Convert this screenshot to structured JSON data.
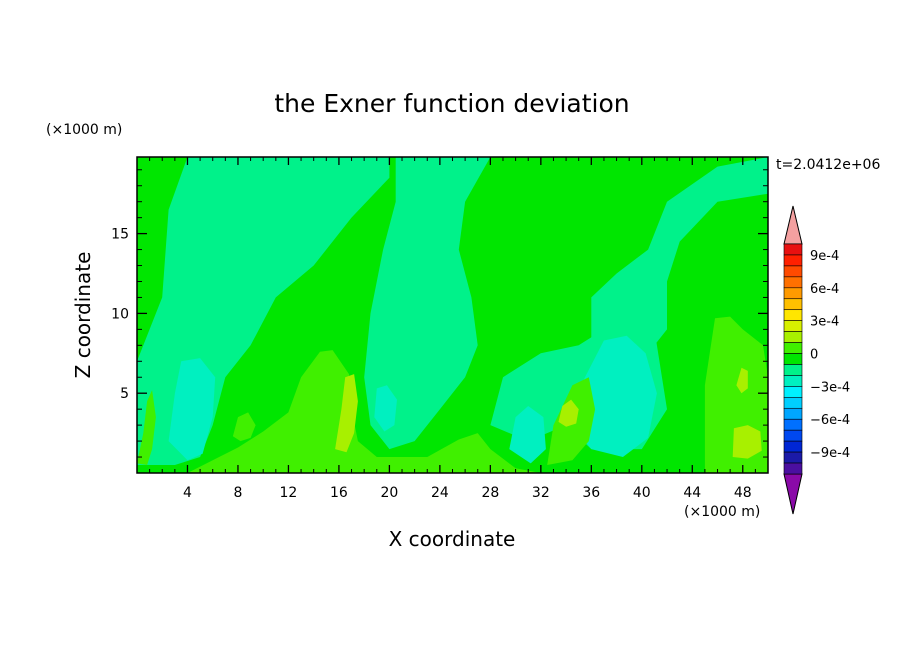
{
  "chart_data": {
    "type": "heatmap",
    "title": "the Exner function deviation",
    "xlabel": "X coordinate",
    "ylabel": "Z coordinate",
    "x_unit": "(×1000 m)",
    "y_unit": "(×1000 m)",
    "time_label": "t=2.0412e+06",
    "xlim": [
      0,
      50
    ],
    "ylim": [
      0,
      19.8
    ],
    "x_ticks": [
      4,
      8,
      12,
      16,
      20,
      24,
      28,
      32,
      36,
      40,
      44,
      48
    ],
    "y_ticks": [
      5,
      10,
      15
    ],
    "grid": false,
    "colorbar": {
      "position": "right",
      "levels": [
        -0.0011,
        -0.001,
        -0.0009,
        -0.0008,
        -0.0007,
        -0.0006,
        -0.0005,
        -0.0004,
        -0.0003,
        -0.0002,
        -0.0001,
        0,
        0.0001,
        0.0002,
        0.0003,
        0.0004,
        0.0005,
        0.0006,
        0.0007,
        0.0008,
        0.0009,
        0.001,
        0.0011
      ],
      "labels": [
        {
          "value": 0.0009,
          "text": "9e-4"
        },
        {
          "value": 0.0006,
          "text": "6e-4"
        },
        {
          "value": 0.0003,
          "text": "3e-4"
        },
        {
          "value": 0,
          "text": "0"
        },
        {
          "value": -0.0003,
          "text": "−3e-4"
        },
        {
          "value": -0.0006,
          "text": "−6e-4"
        },
        {
          "value": -0.0009,
          "text": "−9e-4"
        }
      ],
      "colors": [
        "#7a1fa8",
        "#4b0fa0",
        "#1b1aa8",
        "#0026d4",
        "#0048f0",
        "#0070ff",
        "#00a6ff",
        "#00cfff",
        "#00f0ff",
        "#00f0c0",
        "#00f28a",
        "#00e600",
        "#40f000",
        "#a8f000",
        "#d8f000",
        "#ffe600",
        "#ffc000",
        "#ff9a00",
        "#ff7000",
        "#ff4a00",
        "#ff2000",
        "#e81010",
        "#f4a0a0"
      ],
      "over_color": "#f4a0a0",
      "under_color": "#8a0aa8"
    },
    "regions": [
      {
        "value": 5e-05,
        "points": [
          [
            0,
            0
          ],
          [
            50,
            0
          ],
          [
            50,
            19.8
          ],
          [
            0,
            19.8
          ]
        ]
      },
      {
        "value": -8e-05,
        "points": [
          [
            0,
            7
          ],
          [
            2,
            11
          ],
          [
            2.5,
            16.5
          ],
          [
            4,
            19.8
          ],
          [
            20,
            19.8
          ],
          [
            20,
            18.5
          ],
          [
            17,
            16
          ],
          [
            14,
            13
          ],
          [
            11,
            11
          ],
          [
            9,
            8
          ],
          [
            7,
            6
          ],
          [
            6,
            3
          ],
          [
            5,
            1
          ],
          [
            3,
            0.5
          ],
          [
            0,
            0.5
          ]
        ]
      },
      {
        "value": -8e-05,
        "points": [
          [
            20.5,
            19.8
          ],
          [
            28,
            19.8
          ],
          [
            26,
            17
          ],
          [
            25.5,
            14
          ],
          [
            26.5,
            11
          ],
          [
            27,
            8
          ],
          [
            26,
            6
          ],
          [
            24,
            4
          ],
          [
            22,
            2
          ],
          [
            20,
            1.5
          ],
          [
            18.5,
            3
          ],
          [
            18,
            6
          ],
          [
            18.5,
            10
          ],
          [
            19.5,
            14
          ],
          [
            20.5,
            17
          ]
        ]
      },
      {
        "value": -8e-05,
        "points": [
          [
            36,
            11
          ],
          [
            38,
            12.5
          ],
          [
            40.5,
            14
          ],
          [
            42,
            17
          ],
          [
            46,
            19.2
          ],
          [
            50,
            19.8
          ],
          [
            50,
            17.5
          ],
          [
            46,
            17
          ],
          [
            43,
            14.5
          ],
          [
            42,
            12
          ],
          [
            42,
            9
          ],
          [
            40,
            7
          ],
          [
            38,
            6
          ],
          [
            36,
            7
          ]
        ]
      },
      {
        "value": -8e-05,
        "points": [
          [
            28,
            3
          ],
          [
            31,
            2
          ],
          [
            34,
            3
          ],
          [
            36,
            1.5
          ],
          [
            40,
            1.5
          ],
          [
            42,
            4
          ],
          [
            41,
            9
          ],
          [
            38,
            9.5
          ],
          [
            35,
            8
          ],
          [
            32,
            7.5
          ],
          [
            29,
            6
          ]
        ]
      },
      {
        "value": -0.00018,
        "points": [
          [
            2.5,
            2
          ],
          [
            3,
            5
          ],
          [
            3.5,
            7
          ],
          [
            5,
            7.2
          ],
          [
            6.2,
            6
          ],
          [
            6,
            3.5
          ],
          [
            5.2,
            1.2
          ],
          [
            4,
            0.8
          ]
        ]
      },
      {
        "value": -0.00018,
        "points": [
          [
            34,
            3.5
          ],
          [
            35.5,
            6
          ],
          [
            37,
            8.3
          ],
          [
            38.8,
            8.6
          ],
          [
            40.3,
            7.5
          ],
          [
            41.2,
            5
          ],
          [
            40.5,
            2.2
          ],
          [
            38.5,
            1
          ],
          [
            36,
            1.5
          ]
        ]
      },
      {
        "value": -0.00018,
        "points": [
          [
            29.5,
            1.5
          ],
          [
            30,
            3.5
          ],
          [
            31,
            4.2
          ],
          [
            32.2,
            3.5
          ],
          [
            32.4,
            1.5
          ],
          [
            31.2,
            0.6
          ]
        ]
      },
      {
        "value": -0.00018,
        "points": [
          [
            18.8,
            3.5
          ],
          [
            19,
            5.3
          ],
          [
            19.8,
            5.5
          ],
          [
            20.6,
            4.6
          ],
          [
            20.4,
            3
          ],
          [
            19.6,
            2.6
          ]
        ]
      },
      {
        "value": -0.00018,
        "points": [
          [
            10,
            1.5
          ],
          [
            10.6,
            2.6
          ],
          [
            11.7,
            2.7
          ],
          [
            12.3,
            1.8
          ],
          [
            11.8,
            0.9
          ],
          [
            10.7,
            0.8
          ]
        ]
      },
      {
        "value": 0.00015,
        "points": [
          [
            4,
            0
          ],
          [
            6,
            0.8
          ],
          [
            8,
            1.6
          ],
          [
            10,
            2.6
          ],
          [
            12,
            3.8
          ],
          [
            13,
            6
          ],
          [
            14.5,
            7.6
          ],
          [
            15.5,
            7.7
          ],
          [
            16.8,
            6.2
          ],
          [
            17,
            4
          ],
          [
            17.5,
            2
          ],
          [
            19,
            1
          ],
          [
            23,
            1
          ],
          [
            25.5,
            2.1
          ],
          [
            27,
            2.5
          ],
          [
            28,
            1.5
          ],
          [
            30,
            0.3
          ],
          [
            32,
            0
          ],
          [
            4,
            0
          ]
        ]
      },
      {
        "value": 0.00015,
        "points": [
          [
            32.5,
            0.5
          ],
          [
            33,
            3
          ],
          [
            34.5,
            5.5
          ],
          [
            35.8,
            6
          ],
          [
            36.3,
            4
          ],
          [
            35.8,
            2
          ],
          [
            34.5,
            0.8
          ]
        ]
      },
      {
        "value": 0.00015,
        "points": [
          [
            45,
            0
          ],
          [
            45,
            5.5
          ],
          [
            45.8,
            9.7
          ],
          [
            47,
            9.8
          ],
          [
            48,
            9
          ],
          [
            49.6,
            8
          ],
          [
            50,
            6
          ],
          [
            50,
            0
          ]
        ]
      },
      {
        "value": 0.00015,
        "points": [
          [
            0,
            0.6
          ],
          [
            0.5,
            2.5
          ],
          [
            0.8,
            4.5
          ],
          [
            1.2,
            5.2
          ],
          [
            1.5,
            3.5
          ],
          [
            1.2,
            1.5
          ],
          [
            0.8,
            0.5
          ]
        ]
      },
      {
        "value": 0.00015,
        "points": [
          [
            7.6,
            2.3
          ],
          [
            8,
            3.5
          ],
          [
            8.8,
            3.8
          ],
          [
            9.4,
            3
          ],
          [
            9,
            2.2
          ],
          [
            8.2,
            2
          ]
        ]
      },
      {
        "value": 0.00025,
        "points": [
          [
            15.7,
            1.5
          ],
          [
            16.2,
            4
          ],
          [
            16.5,
            6
          ],
          [
            17.2,
            6.2
          ],
          [
            17.5,
            4.5
          ],
          [
            17.2,
            2.5
          ],
          [
            16.6,
            1.3
          ]
        ]
      },
      {
        "value": 0.00025,
        "points": [
          [
            33.4,
            3.2
          ],
          [
            33.7,
            4.2
          ],
          [
            34.4,
            4.6
          ],
          [
            35,
            4
          ],
          [
            34.8,
            3.1
          ],
          [
            34,
            2.9
          ]
        ]
      },
      {
        "value": 0.00025,
        "points": [
          [
            47.2,
            1
          ],
          [
            47.3,
            2.8
          ],
          [
            48.4,
            3
          ],
          [
            49.4,
            2.6
          ],
          [
            49.5,
            1.4
          ],
          [
            48.4,
            0.9
          ]
        ]
      },
      {
        "value": 0.00025,
        "points": [
          [
            47.5,
            5.5
          ],
          [
            47.9,
            6.6
          ],
          [
            48.4,
            6.4
          ],
          [
            48.4,
            5.3
          ],
          [
            47.9,
            5
          ]
        ]
      }
    ]
  }
}
